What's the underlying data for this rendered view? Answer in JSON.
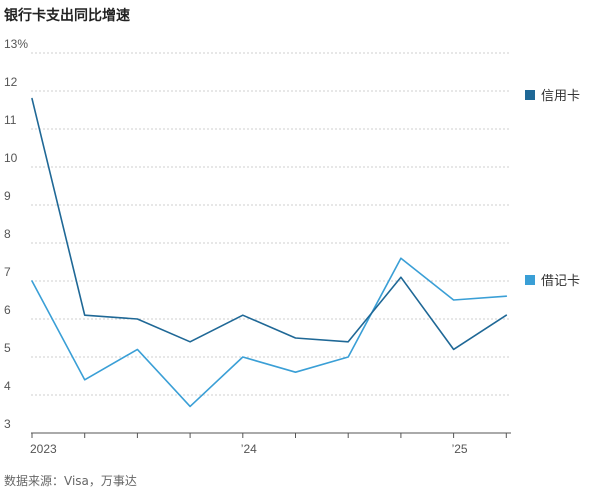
{
  "chart_data": {
    "type": "line",
    "title": "银行卡支出同比增速",
    "source": "数据来源：Visa，万事达",
    "y_unit": "%",
    "ylim": [
      3,
      13
    ],
    "y_ticks": [
      3,
      4,
      5,
      6,
      7,
      8,
      9,
      10,
      11,
      12,
      13
    ],
    "y_tick_labels": [
      "3",
      "4",
      "5",
      "6",
      "7",
      "8",
      "9",
      "10",
      "11",
      "12",
      "13%"
    ],
    "x": [
      "2023-Q1",
      "2023-Q2",
      "2023-Q3",
      "2023-Q4",
      "2024-Q1",
      "2024-Q2",
      "2024-Q3",
      "2024-Q4",
      "2025-Q1",
      "2025-Q2"
    ],
    "x_tick_labels": [
      {
        "at": "2023-Q1",
        "label": "2023"
      },
      {
        "at": "2024-Q1",
        "label": "’24"
      },
      {
        "at": "2025-Q1",
        "label": "’25"
      }
    ],
    "grid": true,
    "legend": "right",
    "series": [
      {
        "name": "信用卡",
        "color": "#1f6896",
        "values": [
          11.8,
          6.1,
          6.0,
          5.4,
          6.1,
          5.5,
          5.4,
          7.1,
          5.2,
          6.1
        ]
      },
      {
        "name": "借记卡",
        "color": "#3a9fd6",
        "values": [
          7.0,
          4.4,
          5.2,
          3.7,
          5.0,
          4.6,
          5.0,
          7.6,
          6.5,
          6.6
        ]
      }
    ]
  }
}
